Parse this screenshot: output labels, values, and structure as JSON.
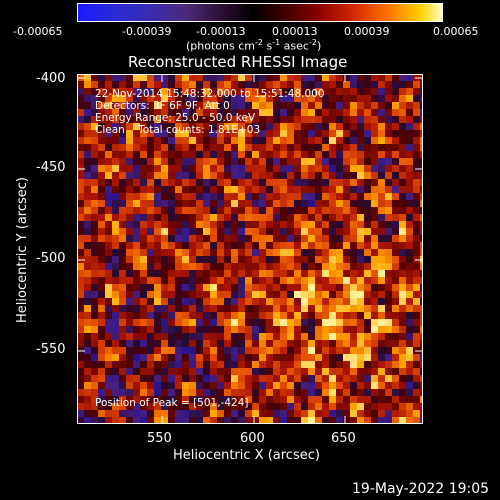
{
  "colorbar": {
    "tick_labels": [
      "-0.00065",
      "-0.00039",
      "-0.00013",
      "0.00013",
      "0.00039",
      "0.00065"
    ],
    "units_main": "(photons cm",
    "units_sup1": "-2",
    "units_mid1": " s",
    "units_sup2": "-1",
    "units_mid2": " asec",
    "units_sup3": "-2",
    "units_end": ")"
  },
  "title": "Reconstructed RHESSI Image",
  "info": {
    "line1": "22-Nov-2014 15:48:32.000 to 15:51:48.000",
    "line2": "Detectors: 3F 6F 9F, Att 0",
    "line3": "Energy Range: 25.0 - 50.0 keV",
    "line4": "Clean    Total counts: 1.81E+03",
    "peak": "Position of Peak = [501,-424]"
  },
  "axes": {
    "xlabel": "Heliocentric X (arcsec)",
    "ylabel": "Heliocentric Y (arcsec)",
    "xticks": [
      "550",
      "600",
      "650"
    ],
    "yticks": [
      "-400",
      "-450",
      "-500",
      "-550"
    ]
  },
  "footer": "19-May-2022 19:05"
}
